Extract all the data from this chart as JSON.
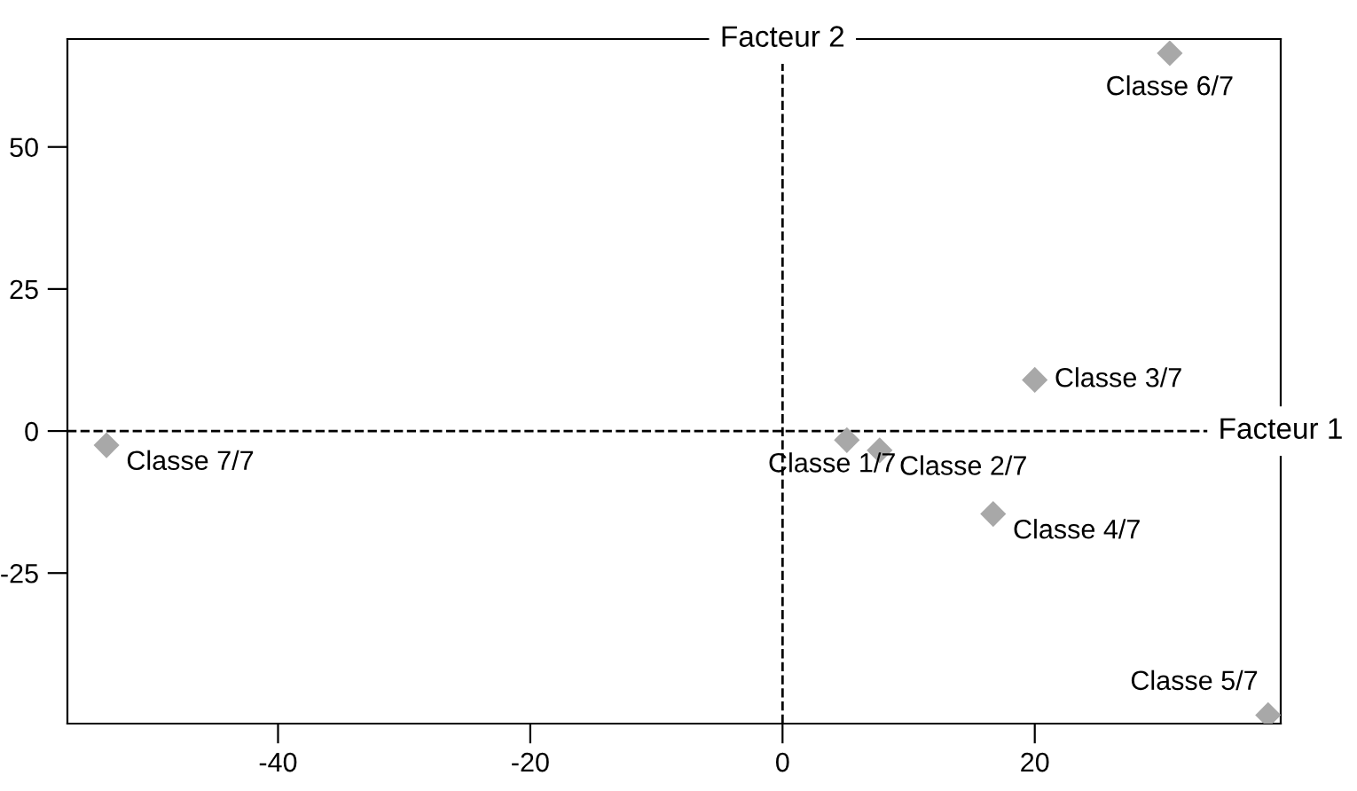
{
  "chart_data": {
    "type": "scatter",
    "marker": "diamond",
    "grid": false,
    "series": [
      {
        "color": "#a8a8a8",
        "x": [
          5.1,
          7.7,
          20,
          16.7,
          38.5,
          30.7,
          -53.6
        ],
        "values": [
          -1.6,
          -3.4,
          9,
          -14.6,
          -50,
          66.5,
          -2.5
        ]
      }
    ],
    "xlim": [
      -56.7,
      39.5
    ],
    "ylim": [
      -51.5,
      69
    ],
    "xticks": [
      -40,
      -20,
      0,
      20
    ],
    "yticks": [
      -25,
      0,
      25,
      50
    ],
    "ref_lines": [
      {
        "axis": "y",
        "value": 0,
        "label": "Facteur 1",
        "line_style": "dashed",
        "color": "#000000"
      },
      {
        "axis": "x",
        "value": 0,
        "label": "Facteur 2",
        "line_style": "dashed",
        "color": "#000000"
      }
    ],
    "annotations": [
      {
        "text": "Classe 1/7",
        "x": 5.1,
        "y": -1.6
      },
      {
        "text": "Classe 2/7",
        "x": 7.7,
        "y": -3.4
      },
      {
        "text": "Classe 3/7",
        "x": 20,
        "y": 9
      },
      {
        "text": "Classe 4/7",
        "x": 16.7,
        "y": -14.6
      },
      {
        "text": "Classe 5/7",
        "x": 38.5,
        "y": -50
      },
      {
        "text": "Classe 6/7",
        "x": 30.7,
        "y": 66.5
      },
      {
        "text": "Classe 7/7",
        "x": -53.6,
        "y": -2.5
      }
    ]
  }
}
